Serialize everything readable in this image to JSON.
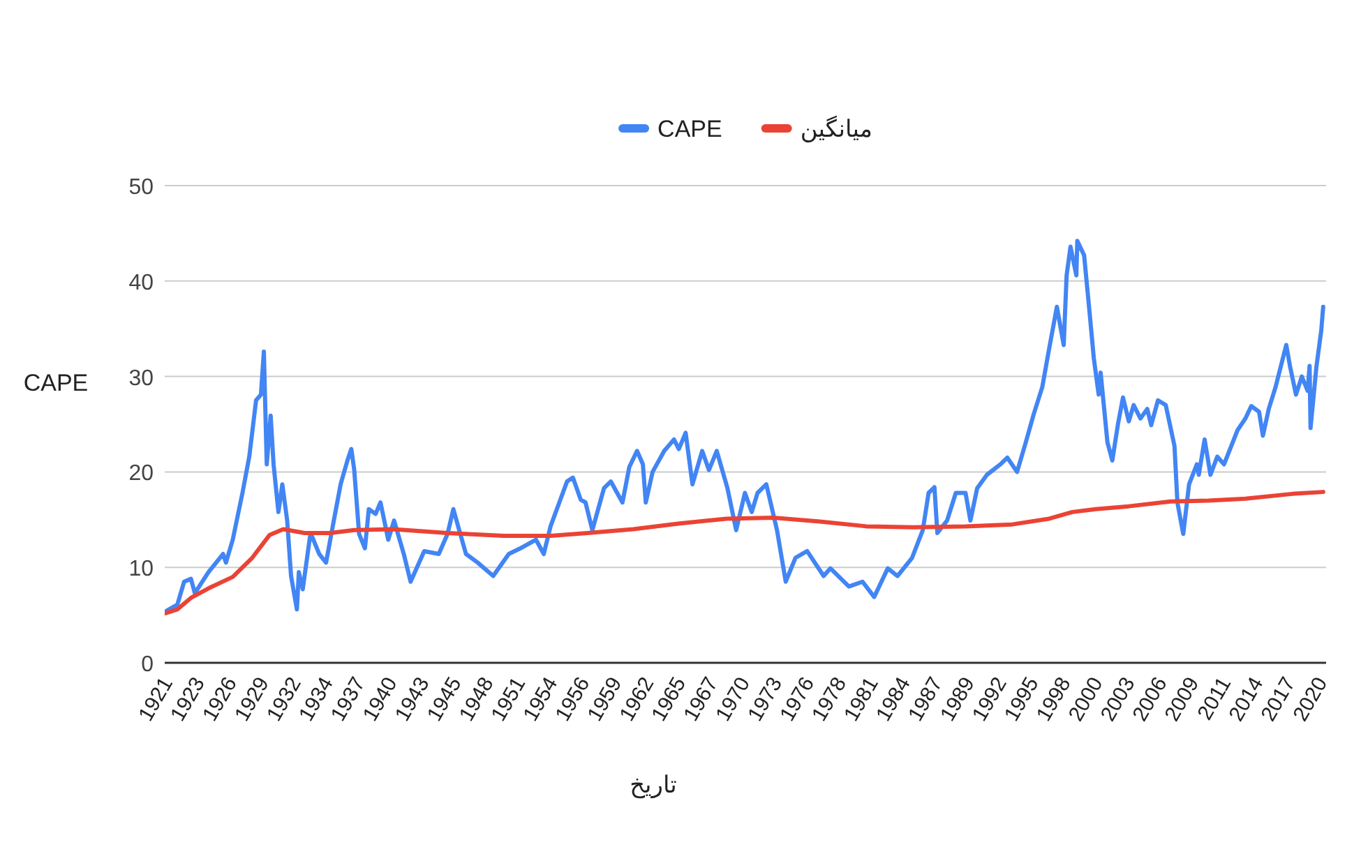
{
  "chart_data": {
    "type": "line",
    "xlabel": "تاریخ",
    "ylabel": "CAPE",
    "xlim": [
      "1921-01",
      "2020-08"
    ],
    "ylim": [
      0,
      50
    ],
    "yticks": [
      0,
      10,
      20,
      30,
      40,
      50
    ],
    "xticks": [
      {
        "value": "1921-01",
        "label": "1921"
      },
      {
        "value": "1923-10",
        "label": "1923"
      },
      {
        "value": "1926-07",
        "label": "1926"
      },
      {
        "value": "1929-04",
        "label": "1929"
      },
      {
        "value": "1932-01",
        "label": "1932"
      },
      {
        "value": "1934-10",
        "label": "1934"
      },
      {
        "value": "1937-07",
        "label": "1937"
      },
      {
        "value": "1940-04",
        "label": "1940"
      },
      {
        "value": "1943-01",
        "label": "1943"
      },
      {
        "value": "1945-10",
        "label": "1945"
      },
      {
        "value": "1948-07",
        "label": "1948"
      },
      {
        "value": "1951-04",
        "label": "1951"
      },
      {
        "value": "1954-01",
        "label": "1954"
      },
      {
        "value": "1956-10",
        "label": "1956"
      },
      {
        "value": "1959-07",
        "label": "1959"
      },
      {
        "value": "1962-04",
        "label": "1962"
      },
      {
        "value": "1965-01",
        "label": "1965"
      },
      {
        "value": "1967-10",
        "label": "1967"
      },
      {
        "value": "1970-07",
        "label": "1970"
      },
      {
        "value": "1973-04",
        "label": "1973"
      },
      {
        "value": "1976-01",
        "label": "1976"
      },
      {
        "value": "1978-10",
        "label": "1978"
      },
      {
        "value": "1981-07",
        "label": "1981"
      },
      {
        "value": "1984-04",
        "label": "1984"
      },
      {
        "value": "1987-01",
        "label": "1987"
      },
      {
        "value": "1989-10",
        "label": "1989"
      },
      {
        "value": "1992-07",
        "label": "1992"
      },
      {
        "value": "1995-04",
        "label": "1995"
      },
      {
        "value": "1998-01",
        "label": "1998"
      },
      {
        "value": "2000-10",
        "label": "2000"
      },
      {
        "value": "2003-07",
        "label": "2003"
      },
      {
        "value": "2006-04",
        "label": "2006"
      },
      {
        "value": "2009-01",
        "label": "2009"
      },
      {
        "value": "2011-10",
        "label": "2011"
      },
      {
        "value": "2014-07",
        "label": "2014"
      },
      {
        "value": "2017-04",
        "label": "2017"
      },
      {
        "value": "2020-01",
        "label": "2020"
      }
    ],
    "grid": "y",
    "legend": "top",
    "series": [
      {
        "name": "CAPE",
        "color": "#4285f4",
        "x": [
          "1921-02",
          "1922-02",
          "1922-09",
          "1923-04",
          "1923-08",
          "1924-10",
          "1926-01",
          "1926-04",
          "1926-11",
          "1927-09",
          "1928-04",
          "1928-11",
          "1929-04",
          "1929-07",
          "1929-10",
          "1930-02",
          "1930-05",
          "1930-10",
          "1931-02",
          "1931-07",
          "1931-11",
          "1932-05",
          "1932-07",
          "1932-11",
          "1933-07",
          "1933-10",
          "1934-04",
          "1934-11",
          "1935-07",
          "1936-02",
          "1936-09",
          "1937-01",
          "1937-04",
          "1937-09",
          "1938-03",
          "1938-07",
          "1939-02",
          "1939-07",
          "1940-03",
          "1940-09",
          "1941-07",
          "1942-02",
          "1943-04",
          "1944-07",
          "1945-04",
          "1945-10",
          "1946-04",
          "1946-11",
          "1947-11",
          "1949-03",
          "1950-07",
          "1951-09",
          "1952-11",
          "1953-07",
          "1954-02",
          "1954-11",
          "1955-07",
          "1956-01",
          "1956-09",
          "1957-02",
          "1957-09",
          "1958-09",
          "1959-04",
          "1960-04",
          "1960-11",
          "1961-07",
          "1962-01",
          "1962-04",
          "1962-11",
          "1963-11",
          "1964-09",
          "1965-02",
          "1965-09",
          "1966-04",
          "1967-02",
          "1967-09",
          "1968-05",
          "1969-04",
          "1970-01",
          "1970-10",
          "1971-05",
          "1971-11",
          "1972-08",
          "1973-07",
          "1974-04",
          "1975-02",
          "1976-02",
          "1977-07",
          "1978-02",
          "1979-09",
          "1980-11",
          "1981-11",
          "1983-01",
          "1983-11",
          "1985-02",
          "1986-01",
          "1986-07",
          "1987-01",
          "1987-04",
          "1988-02",
          "1988-11",
          "1989-09",
          "1990-02",
          "1990-09",
          "1991-07",
          "1992-09",
          "1993-04",
          "1994-02",
          "1994-11",
          "1995-07",
          "1996-04",
          "1996-11",
          "1997-07",
          "1998-02",
          "1998-05",
          "1998-09",
          "1999-03",
          "1999-04",
          "1999-11",
          "2000-05",
          "2000-09",
          "2001-02",
          "2001-04",
          "2001-11",
          "2002-04",
          "2002-10",
          "2003-03",
          "2003-09",
          "2004-02",
          "2004-09",
          "2005-04",
          "2005-08",
          "2006-03",
          "2006-11",
          "2007-08",
          "2007-11",
          "2008-05",
          "2008-11",
          "2009-07",
          "2009-09",
          "2010-03",
          "2010-09",
          "2011-04",
          "2011-11",
          "2013-01",
          "2013-09",
          "2014-03",
          "2014-11",
          "2015-03",
          "2015-09",
          "2016-04",
          "2017-03",
          "2017-07",
          "2018-01",
          "2018-07",
          "2019-01",
          "2019-03",
          "2019-04",
          "2019-10",
          "2020-03",
          "2020-05"
        ],
        "values": [
          5.4,
          6.1,
          8.5,
          8.8,
          7.3,
          9.5,
          11.4,
          10.5,
          12.9,
          17.8,
          21.6,
          27.5,
          28.1,
          32.6,
          20.8,
          25.9,
          20.8,
          15.8,
          18.7,
          14.9,
          9.1,
          5.6,
          9.5,
          7.7,
          13.6,
          12.9,
          11.4,
          10.5,
          14.9,
          18.7,
          21.2,
          22.4,
          20.2,
          13.5,
          12.0,
          16.1,
          15.6,
          16.8,
          12.9,
          14.9,
          11.4,
          8.5,
          11.7,
          11.4,
          13.5,
          16.1,
          13.9,
          11.4,
          10.5,
          9.1,
          11.4,
          12.1,
          12.9,
          11.4,
          14.3,
          16.8,
          19.0,
          19.4,
          17.1,
          16.8,
          13.9,
          18.3,
          19.0,
          16.8,
          20.5,
          22.2,
          20.8,
          16.8,
          20.0,
          22.2,
          23.4,
          22.4,
          24.1,
          18.7,
          22.2,
          20.2,
          22.2,
          18.3,
          13.9,
          17.8,
          15.8,
          17.8,
          18.7,
          13.9,
          8.5,
          11.0,
          11.7,
          9.1,
          9.9,
          8.0,
          8.5,
          6.9,
          9.9,
          9.1,
          11.0,
          13.9,
          17.8,
          18.4,
          13.6,
          14.9,
          17.8,
          17.8,
          14.9,
          18.3,
          19.7,
          20.8,
          21.5,
          20.0,
          23.1,
          26.0,
          28.9,
          32.9,
          37.3,
          33.3,
          40.6,
          43.6,
          40.6,
          44.2,
          42.7,
          36.3,
          31.9,
          28.1,
          30.4,
          23.1,
          21.2,
          25.1,
          27.8,
          25.3,
          27.0,
          25.6,
          26.6,
          24.9,
          27.5,
          27.0,
          22.7,
          16.8,
          13.5,
          18.7,
          20.8,
          19.7,
          23.4,
          19.7,
          21.6,
          20.8,
          24.4,
          25.6,
          26.9,
          26.3,
          23.8,
          26.6,
          28.9,
          33.3,
          31.0,
          28.1,
          30.0,
          28.5,
          31.1,
          24.6,
          31.0,
          34.8,
          37.3
        ]
      },
      {
        "name": "میانگین",
        "color": "#ea4335",
        "x": [
          "1921-02",
          "1922-02",
          "1923-04",
          "1924-10",
          "1926-11",
          "1928-07",
          "1930-01",
          "1931-03",
          "1933-01",
          "1935-03",
          "1937-04",
          "1940-08",
          "1945-04",
          "1950-02",
          "1954-02",
          "1957-04",
          "1961-03",
          "1965-03",
          "1969-03",
          "1973-03",
          "1977-03",
          "1981-03",
          "1985-03",
          "1989-09",
          "1993-09",
          "1996-11",
          "1998-11",
          "2000-11",
          "2003-09",
          "2007-04",
          "2010-07",
          "2013-09",
          "2017-09",
          "2020-05"
        ],
        "values": [
          5.2,
          5.6,
          6.8,
          7.8,
          9.0,
          11.0,
          13.4,
          14.0,
          13.6,
          13.6,
          13.9,
          14.0,
          13.6,
          13.3,
          13.3,
          13.6,
          14.0,
          14.6,
          15.1,
          15.2,
          14.8,
          14.3,
          14.2,
          14.3,
          14.5,
          15.1,
          15.8,
          16.1,
          16.4,
          16.9,
          17.0,
          17.2,
          17.7,
          17.9
        ]
      }
    ]
  }
}
